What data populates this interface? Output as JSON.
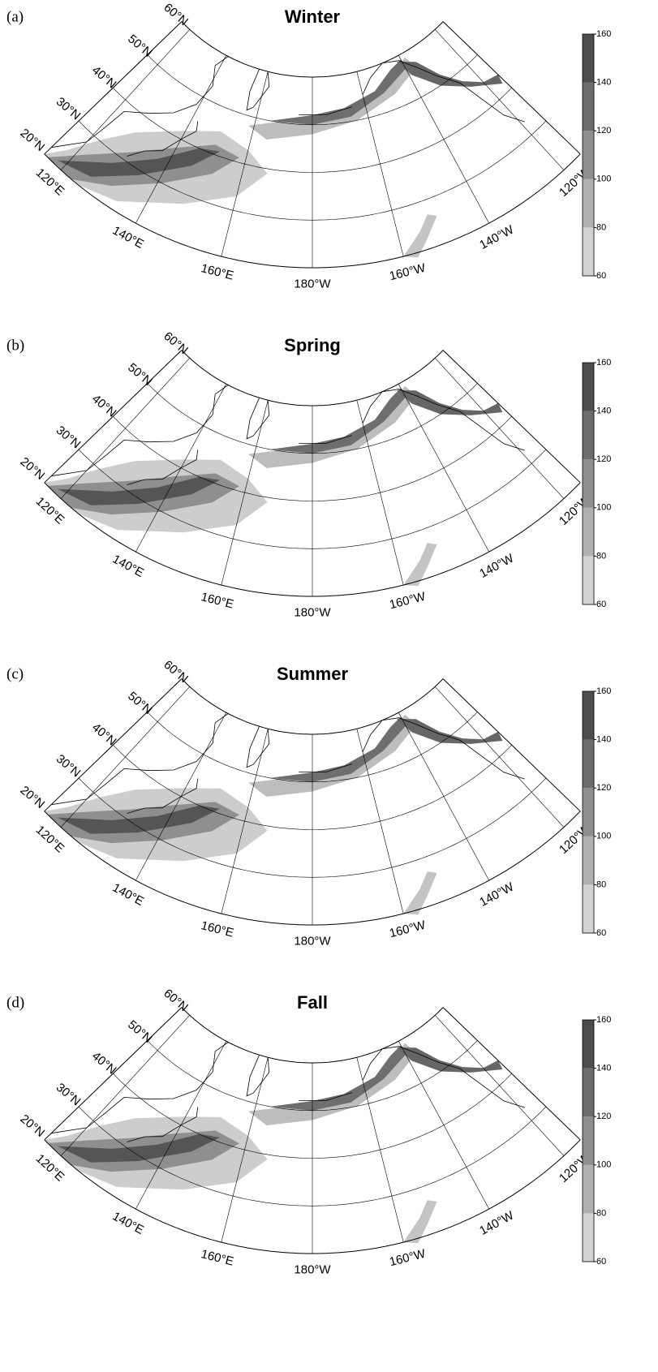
{
  "panels": [
    {
      "label": "(a)",
      "title": "Winter"
    },
    {
      "label": "(b)",
      "title": "Spring"
    },
    {
      "label": "(c)",
      "title": "Summer"
    },
    {
      "label": "(d)",
      "title": "Fall"
    }
  ],
  "map": {
    "lat_labels": [
      "20°N",
      "30°N",
      "40°N",
      "50°N",
      "60°N"
    ],
    "lon_labels": [
      "120°E",
      "140°E",
      "160°E",
      "180°W",
      "160°W",
      "140°W",
      "120°W"
    ]
  },
  "colorbar": {
    "range": [
      60,
      160
    ],
    "ticks": [
      60,
      80,
      100,
      120,
      140,
      160
    ]
  }
}
